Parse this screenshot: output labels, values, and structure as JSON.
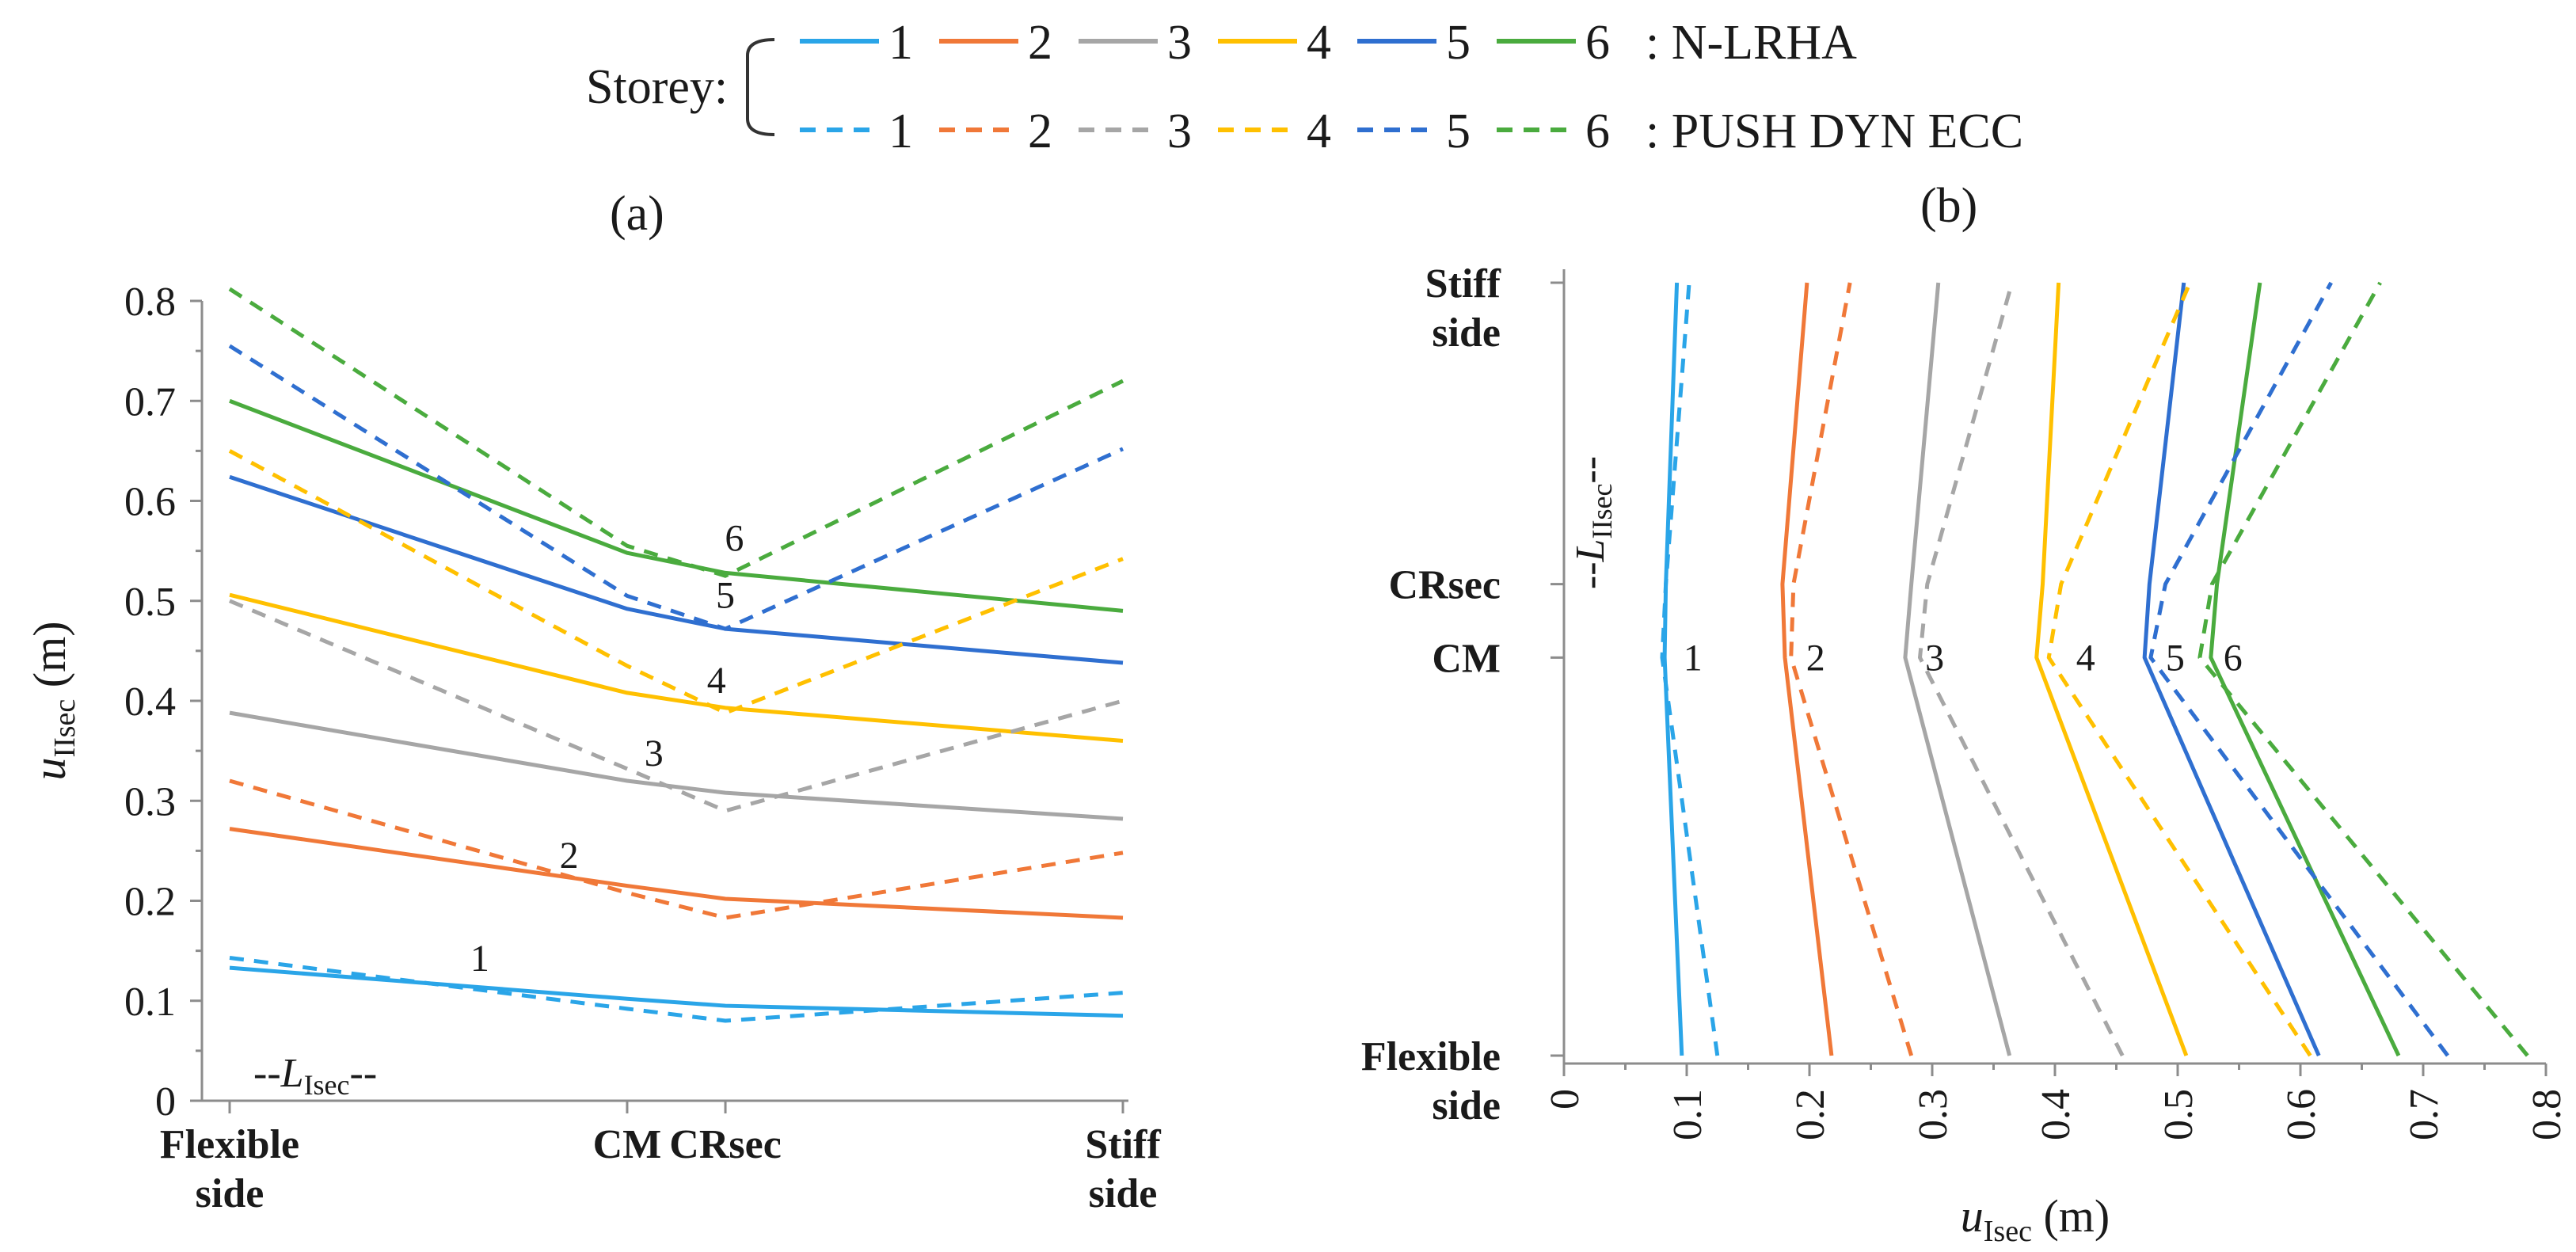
{
  "legend": {
    "label": "Storey:",
    "solid_suffix": ": N-LRHA",
    "dashed_suffix": ": PUSH DYN ECC",
    "items": [
      "1",
      "2",
      "3",
      "4",
      "5",
      "6"
    ]
  },
  "colors": {
    "1": "#2aa5e8",
    "2": "#f07838",
    "3": "#a6a6a6",
    "4": "#ffc000",
    "5": "#2f6fd0",
    "6": "#4aab3e"
  },
  "chart_data": [
    {
      "type": "line",
      "panel_label": "(a)",
      "ylabel_main": "u",
      "ylabel_sub": "IIsec",
      "ylabel_unit": " (m)",
      "ylim": [
        0,
        0.8
      ],
      "y_ticks": [
        "0",
        "0.1",
        "0.2",
        "0.3",
        "0.4",
        "0.5",
        "0.6",
        "0.7",
        "0.8"
      ],
      "x_categories": [
        {
          "pos": 0.0,
          "lines": [
            "Flexible",
            "side"
          ]
        },
        {
          "pos": 0.445,
          "lines": [
            "CM"
          ]
        },
        {
          "pos": 0.555,
          "lines": [
            "CRsec"
          ]
        },
        {
          "pos": 1.0,
          "lines": [
            "Stiff",
            "side"
          ]
        }
      ],
      "x_positions": [
        0.0,
        0.445,
        0.555,
        1.0
      ],
      "length_note": "--L",
      "length_note_sub": "Isec",
      "length_note_tail": "--",
      "series": [
        {
          "storey": "1",
          "method": "N-LRHA",
          "values": [
            0.133,
            0.102,
            0.095,
            0.085
          ]
        },
        {
          "storey": "2",
          "method": "N-LRHA",
          "values": [
            0.272,
            0.215,
            0.202,
            0.183
          ]
        },
        {
          "storey": "3",
          "method": "N-LRHA",
          "values": [
            0.388,
            0.32,
            0.308,
            0.282
          ]
        },
        {
          "storey": "4",
          "method": "N-LRHA",
          "values": [
            0.506,
            0.408,
            0.393,
            0.36
          ]
        },
        {
          "storey": "5",
          "method": "N-LRHA",
          "values": [
            0.624,
            0.492,
            0.472,
            0.438
          ]
        },
        {
          "storey": "6",
          "method": "N-LRHA",
          "values": [
            0.7,
            0.548,
            0.528,
            0.49
          ]
        },
        {
          "storey": "1",
          "method": "PUSH DYN ECC",
          "values": [
            0.143,
            0.092,
            0.08,
            0.108
          ]
        },
        {
          "storey": "2",
          "method": "PUSH DYN ECC",
          "values": [
            0.32,
            0.208,
            0.183,
            0.248
          ]
        },
        {
          "storey": "3",
          "method": "PUSH DYN ECC",
          "values": [
            0.5,
            0.332,
            0.29,
            0.4
          ]
        },
        {
          "storey": "4",
          "method": "PUSH DYN ECC",
          "values": [
            0.65,
            0.435,
            0.388,
            0.542
          ]
        },
        {
          "storey": "5",
          "method": "PUSH DYN ECC",
          "values": [
            0.755,
            0.505,
            0.472,
            0.652
          ]
        },
        {
          "storey": "6",
          "method": "PUSH DYN ECC",
          "values": [
            0.812,
            0.555,
            0.525,
            0.72
          ]
        }
      ],
      "annotations": [
        {
          "text": "1",
          "x": 0.28,
          "y": 0.13
        },
        {
          "text": "2",
          "x": 0.38,
          "y": 0.233
        },
        {
          "text": "3",
          "x": 0.475,
          "y": 0.335
        },
        {
          "text": "4",
          "x": 0.545,
          "y": 0.408
        },
        {
          "text": "5",
          "x": 0.555,
          "y": 0.493
        },
        {
          "text": "6",
          "x": 0.565,
          "y": 0.55
        }
      ]
    },
    {
      "type": "line",
      "panel_label": "(b)",
      "xlabel_main": "u",
      "xlabel_sub": "Isec",
      "xlabel_unit": " (m)",
      "xlim": [
        0,
        0.8
      ],
      "x_ticks": [
        "0",
        "0.1",
        "0.2",
        "0.3",
        "0.4",
        "0.5",
        "0.6",
        "0.7",
        "0.8"
      ],
      "y_categories": [
        {
          "pos": 0.0,
          "lines": [
            "Flexible",
            "side"
          ]
        },
        {
          "pos": 0.515,
          "lines": [
            "CM"
          ]
        },
        {
          "pos": 0.61,
          "lines": [
            "CRsec"
          ]
        },
        {
          "pos": 1.0,
          "lines": [
            "Stiff",
            "side"
          ]
        }
      ],
      "y_positions": [
        0.0,
        0.515,
        0.61,
        1.0
      ],
      "length_note": "--L",
      "length_note_sub": "IIsec",
      "length_note_tail": "--",
      "series": [
        {
          "storey": "1",
          "method": "N-LRHA",
          "values": [
            0.096,
            0.082,
            0.083,
            0.092
          ]
        },
        {
          "storey": "2",
          "method": "N-LRHA",
          "values": [
            0.218,
            0.18,
            0.178,
            0.198
          ]
        },
        {
          "storey": "3",
          "method": "N-LRHA",
          "values": [
            0.363,
            0.278,
            0.283,
            0.305
          ]
        },
        {
          "storey": "4",
          "method": "N-LRHA",
          "values": [
            0.507,
            0.385,
            0.39,
            0.403
          ]
        },
        {
          "storey": "5",
          "method": "N-LRHA",
          "values": [
            0.615,
            0.473,
            0.477,
            0.505
          ]
        },
        {
          "storey": "6",
          "method": "N-LRHA",
          "values": [
            0.68,
            0.527,
            0.532,
            0.567
          ]
        },
        {
          "storey": "1",
          "method": "PUSH DYN ECC",
          "values": [
            0.125,
            0.08,
            0.083,
            0.102
          ]
        },
        {
          "storey": "2",
          "method": "PUSH DYN ECC",
          "values": [
            0.283,
            0.185,
            0.187,
            0.233
          ]
        },
        {
          "storey": "3",
          "method": "PUSH DYN ECC",
          "values": [
            0.455,
            0.29,
            0.296,
            0.365
          ]
        },
        {
          "storey": "4",
          "method": "PUSH DYN ECC",
          "values": [
            0.608,
            0.395,
            0.405,
            0.51
          ]
        },
        {
          "storey": "5",
          "method": "PUSH DYN ECC",
          "values": [
            0.72,
            0.478,
            0.49,
            0.625
          ]
        },
        {
          "storey": "6",
          "method": "PUSH DYN ECC",
          "values": [
            0.785,
            0.518,
            0.528,
            0.665
          ]
        }
      ],
      "annotations": [
        {
          "text": "1",
          "x": 0.105,
          "y": 0.515
        },
        {
          "text": "2",
          "x": 0.205,
          "y": 0.515
        },
        {
          "text": "3",
          "x": 0.302,
          "y": 0.515
        },
        {
          "text": "4",
          "x": 0.425,
          "y": 0.515
        },
        {
          "text": "5",
          "x": 0.498,
          "y": 0.515
        },
        {
          "text": "6",
          "x": 0.545,
          "y": 0.515
        }
      ]
    }
  ]
}
